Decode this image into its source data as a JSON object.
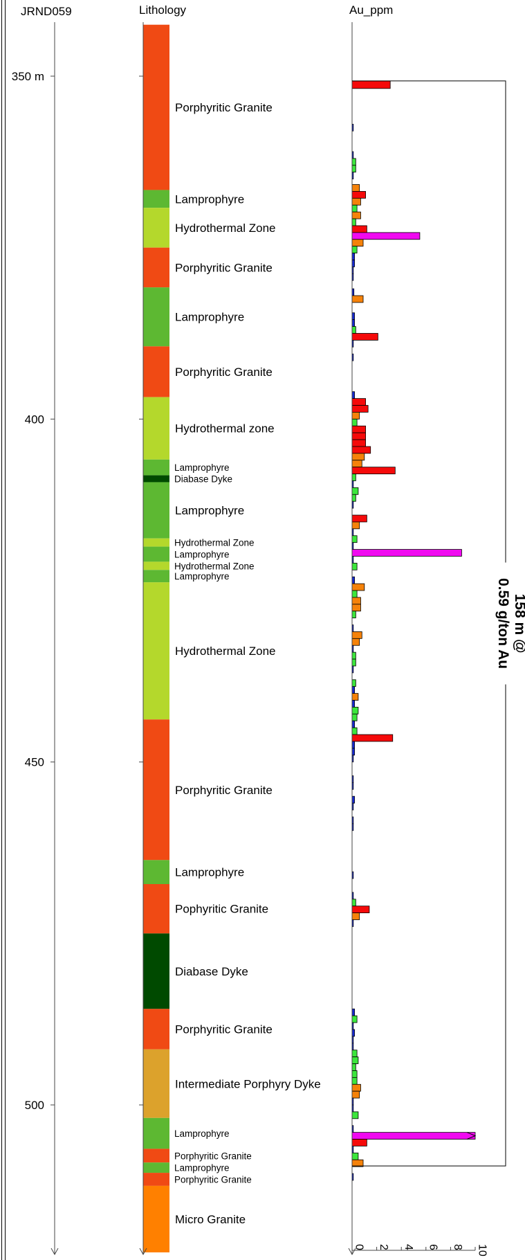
{
  "hole_id": "JRND059",
  "lithology_header": "Lithology",
  "assay_header": "Au_ppm",
  "colors": {
    "porphyritic_granite": "#F04A14",
    "lamprophyre": "#5DB832",
    "hydrothermal": "#B4D82C",
    "diabase": "#004A00",
    "intermediate": "#DCA22C",
    "micro_granite": "#FF8000",
    "au_lt_0_25": "#1428D2",
    "au_0_25_0_5": "#3CE63C",
    "au_0_5_1": "#F5820A",
    "au_1_5": "#F50A0A",
    "au_gt_5": "#F00AF0"
  },
  "chart_data": {
    "type": "bar",
    "orientation": "horizontal",
    "depth_axis": {
      "unit": "m",
      "range": [
        342.5,
        521.5
      ],
      "ticks": [
        {
          "depth": 350,
          "label": "350 m"
        },
        {
          "depth": 400,
          "label": "400"
        },
        {
          "depth": 450,
          "label": "450"
        },
        {
          "depth": 500,
          "label": "500"
        }
      ]
    },
    "au_axis": {
      "range": [
        0,
        10
      ],
      "ticks": [
        {
          "value": 0,
          "label": "0"
        },
        {
          "value": 2,
          "label": "2"
        },
        {
          "value": 4,
          "label": "4"
        },
        {
          "value": 6,
          "label": "6"
        },
        {
          "value": 8,
          "label": "8"
        },
        {
          "value": 10,
          "label": "10"
        }
      ]
    },
    "lithology": [
      {
        "from": 342.5,
        "to": 366.6,
        "name": "Porphyritic Granite",
        "key": "porphyritic_granite",
        "size": "large"
      },
      {
        "from": 366.6,
        "to": 369.2,
        "name": "Lamprophyre",
        "key": "lamprophyre",
        "size": "large"
      },
      {
        "from": 369.2,
        "to": 375.0,
        "name": "Hydrothermal Zone",
        "key": "hydrothermal",
        "size": "large"
      },
      {
        "from": 375.0,
        "to": 380.8,
        "name": "Porphyritic Granite",
        "key": "porphyritic_granite",
        "size": "large"
      },
      {
        "from": 380.8,
        "to": 389.4,
        "name": "Lamprophyre",
        "key": "lamprophyre",
        "size": "large"
      },
      {
        "from": 389.4,
        "to": 396.8,
        "name": "Porphyritic Granite",
        "key": "porphyritic_granite",
        "size": "large"
      },
      {
        "from": 396.8,
        "to": 405.9,
        "name": "Hydrothermal zone",
        "key": "hydrothermal",
        "size": "large"
      },
      {
        "from": 405.9,
        "to": 408.2,
        "name": "Lamprophyre",
        "key": "lamprophyre",
        "size": "small"
      },
      {
        "from": 408.2,
        "to": 409.2,
        "name": "Diabase Dyke",
        "key": "diabase",
        "size": "small"
      },
      {
        "from": 409.2,
        "to": 417.4,
        "name": "Lamprophyre",
        "key": "lamprophyre",
        "size": "large"
      },
      {
        "from": 417.4,
        "to": 418.6,
        "name": "Hydrothermal Zone",
        "key": "hydrothermal",
        "size": "small"
      },
      {
        "from": 418.6,
        "to": 420.8,
        "name": "Lamprophyre",
        "key": "lamprophyre",
        "size": "small"
      },
      {
        "from": 420.8,
        "to": 422.0,
        "name": "Hydrothermal Zone",
        "key": "hydrothermal",
        "size": "small"
      },
      {
        "from": 422.0,
        "to": 423.8,
        "name": "Lamprophyre",
        "key": "lamprophyre",
        "size": "small"
      },
      {
        "from": 423.8,
        "to": 443.8,
        "name": "Hydrothermal Zone",
        "key": "hydrothermal",
        "size": "large"
      },
      {
        "from": 443.8,
        "to": 464.3,
        "name": "Porphyritic Granite",
        "key": "porphyritic_granite",
        "size": "large"
      },
      {
        "from": 464.3,
        "to": 467.8,
        "name": "Lamprophyre",
        "key": "lamprophyre",
        "size": "large"
      },
      {
        "from": 467.8,
        "to": 475.0,
        "name": "Pophyritic Granite",
        "key": "porphyritic_granite",
        "size": "large"
      },
      {
        "from": 475.0,
        "to": 486.0,
        "name": "Diabase Dyke",
        "key": "diabase",
        "size": "large"
      },
      {
        "from": 486.0,
        "to": 491.9,
        "name": "Porphyritic Granite",
        "key": "porphyritic_granite",
        "size": "large"
      },
      {
        "from": 491.9,
        "to": 501.9,
        "name": "Intermediate Porphyry Dyke",
        "key": "intermediate",
        "size": "large"
      },
      {
        "from": 501.9,
        "to": 506.4,
        "name": "Lamprophyre",
        "key": "lamprophyre",
        "size": "small"
      },
      {
        "from": 506.4,
        "to": 508.4,
        "name": "Porphyritic Granite",
        "key": "porphyritic_granite",
        "size": "small"
      },
      {
        "from": 508.4,
        "to": 509.9,
        "name": "Lamprophyre",
        "key": "lamprophyre",
        "size": "small"
      },
      {
        "from": 509.9,
        "to": 511.8,
        "name": "Porphyritic Granite",
        "key": "porphyritic_granite",
        "size": "small"
      },
      {
        "from": 511.8,
        "to": 521.5,
        "name": "Micro Granite",
        "key": "micro_granite",
        "size": "large"
      }
    ],
    "au_ppm": [
      {
        "from": 350.7,
        "to": 351.8,
        "value": 3.1,
        "color": "au_1_5"
      },
      {
        "from": 357.0,
        "to": 358.0,
        "value": 0.1,
        "color": "au_lt_0_25"
      },
      {
        "from": 361.0,
        "to": 362.0,
        "value": 0.1,
        "color": "au_lt_0_25"
      },
      {
        "from": 362.0,
        "to": 363.0,
        "value": 0.3,
        "color": "au_0_25_0_5"
      },
      {
        "from": 363.0,
        "to": 364.0,
        "value": 0.3,
        "color": "au_0_25_0_5"
      },
      {
        "from": 364.0,
        "to": 365.0,
        "value": 0.1,
        "color": "au_lt_0_25"
      },
      {
        "from": 365.8,
        "to": 366.8,
        "value": 0.6,
        "color": "au_0_5_1"
      },
      {
        "from": 366.8,
        "to": 367.8,
        "value": 1.1,
        "color": "au_1_5"
      },
      {
        "from": 367.8,
        "to": 368.8,
        "value": 0.7,
        "color": "au_0_5_1"
      },
      {
        "from": 368.8,
        "to": 369.8,
        "value": 0.4,
        "color": "au_0_25_0_5"
      },
      {
        "from": 369.8,
        "to": 370.8,
        "value": 0.7,
        "color": "au_0_5_1"
      },
      {
        "from": 370.8,
        "to": 371.8,
        "value": 0.3,
        "color": "au_0_25_0_5"
      },
      {
        "from": 371.8,
        "to": 372.8,
        "value": 1.2,
        "color": "au_1_5"
      },
      {
        "from": 372.8,
        "to": 373.8,
        "value": 5.5,
        "color": "au_gt_5"
      },
      {
        "from": 373.8,
        "to": 374.8,
        "value": 0.9,
        "color": "au_0_5_1"
      },
      {
        "from": 374.8,
        "to": 375.8,
        "value": 0.4,
        "color": "au_0_25_0_5"
      },
      {
        "from": 375.8,
        "to": 376.8,
        "value": 0.2,
        "color": "au_lt_0_25"
      },
      {
        "from": 376.8,
        "to": 377.8,
        "value": 0.2,
        "color": "au_lt_0_25"
      },
      {
        "from": 377.8,
        "to": 378.8,
        "value": 0.1,
        "color": "au_lt_0_25"
      },
      {
        "from": 378.8,
        "to": 379.8,
        "value": 0.1,
        "color": "au_lt_0_25"
      },
      {
        "from": 381.0,
        "to": 382.0,
        "value": 0.15,
        "color": "au_lt_0_25"
      },
      {
        "from": 382.0,
        "to": 383.0,
        "value": 0.9,
        "color": "au_0_5_1"
      },
      {
        "from": 384.5,
        "to": 385.5,
        "value": 0.2,
        "color": "au_lt_0_25"
      },
      {
        "from": 385.5,
        "to": 386.5,
        "value": 0.2,
        "color": "au_lt_0_25"
      },
      {
        "from": 386.5,
        "to": 387.5,
        "value": 0.3,
        "color": "au_0_25_0_5"
      },
      {
        "from": 387.5,
        "to": 388.5,
        "value": 2.1,
        "color": "au_1_5"
      },
      {
        "from": 388.5,
        "to": 389.5,
        "value": 0.1,
        "color": "au_lt_0_25"
      },
      {
        "from": 390.5,
        "to": 391.5,
        "value": 0.1,
        "color": "au_lt_0_25"
      },
      {
        "from": 396.0,
        "to": 397.0,
        "value": 0.2,
        "color": "au_lt_0_25"
      },
      {
        "from": 397.0,
        "to": 398.0,
        "value": 1.1,
        "color": "au_1_5"
      },
      {
        "from": 398.0,
        "to": 399.0,
        "value": 1.3,
        "color": "au_1_5"
      },
      {
        "from": 399.0,
        "to": 400.0,
        "value": 0.6,
        "color": "au_0_5_1"
      },
      {
        "from": 400.0,
        "to": 401.0,
        "value": 0.4,
        "color": "au_0_25_0_5"
      },
      {
        "from": 401.0,
        "to": 402.0,
        "value": 1.1,
        "color": "au_1_5"
      },
      {
        "from": 402.0,
        "to": 403.0,
        "value": 1.1,
        "color": "au_1_5"
      },
      {
        "from": 403.0,
        "to": 404.0,
        "value": 1.1,
        "color": "au_1_5"
      },
      {
        "from": 404.0,
        "to": 405.0,
        "value": 1.5,
        "color": "au_1_5"
      },
      {
        "from": 405.0,
        "to": 406.0,
        "value": 1.0,
        "color": "au_0_5_1"
      },
      {
        "from": 406.0,
        "to": 407.0,
        "value": 0.8,
        "color": "au_0_5_1"
      },
      {
        "from": 407.0,
        "to": 408.0,
        "value": 3.5,
        "color": "au_1_5"
      },
      {
        "from": 408.0,
        "to": 409.0,
        "value": 0.3,
        "color": "au_0_25_0_5"
      },
      {
        "from": 409.0,
        "to": 410.0,
        "value": 0.1,
        "color": "au_lt_0_25"
      },
      {
        "from": 410.0,
        "to": 411.0,
        "value": 0.5,
        "color": "au_0_25_0_5"
      },
      {
        "from": 411.0,
        "to": 412.0,
        "value": 0.3,
        "color": "au_0_25_0_5"
      },
      {
        "from": 412.0,
        "to": 413.0,
        "value": 0.1,
        "color": "au_lt_0_25"
      },
      {
        "from": 414.0,
        "to": 415.0,
        "value": 1.2,
        "color": "au_1_5"
      },
      {
        "from": 415.0,
        "to": 416.0,
        "value": 0.6,
        "color": "au_0_5_1"
      },
      {
        "from": 416.0,
        "to": 417.0,
        "value": 0.1,
        "color": "au_lt_0_25"
      },
      {
        "from": 417.0,
        "to": 418.0,
        "value": 0.4,
        "color": "au_0_25_0_5"
      },
      {
        "from": 418.0,
        "to": 419.0,
        "value": 0.1,
        "color": "au_lt_0_25"
      },
      {
        "from": 419.0,
        "to": 420.0,
        "value": 8.9,
        "color": "au_gt_5"
      },
      {
        "from": 420.0,
        "to": 421.0,
        "value": 0.1,
        "color": "au_lt_0_25"
      },
      {
        "from": 421.0,
        "to": 422.0,
        "value": 0.4,
        "color": "au_0_25_0_5"
      },
      {
        "from": 423.0,
        "to": 424.0,
        "value": 0.2,
        "color": "au_lt_0_25"
      },
      {
        "from": 424.0,
        "to": 425.0,
        "value": 1.0,
        "color": "au_0_5_1"
      },
      {
        "from": 425.0,
        "to": 426.0,
        "value": 0.4,
        "color": "au_0_25_0_5"
      },
      {
        "from": 426.0,
        "to": 427.0,
        "value": 0.7,
        "color": "au_0_5_1"
      },
      {
        "from": 427.0,
        "to": 428.0,
        "value": 0.7,
        "color": "au_0_5_1"
      },
      {
        "from": 428.0,
        "to": 429.0,
        "value": 0.3,
        "color": "au_0_25_0_5"
      },
      {
        "from": 430.0,
        "to": 431.0,
        "value": 0.1,
        "color": "au_lt_0_25"
      },
      {
        "from": 431.0,
        "to": 432.0,
        "value": 0.8,
        "color": "au_0_5_1"
      },
      {
        "from": 432.0,
        "to": 433.0,
        "value": 0.6,
        "color": "au_0_5_1"
      },
      {
        "from": 433.0,
        "to": 434.0,
        "value": 0.1,
        "color": "au_lt_0_25"
      },
      {
        "from": 434.0,
        "to": 435.0,
        "value": 0.3,
        "color": "au_0_25_0_5"
      },
      {
        "from": 435.0,
        "to": 436.0,
        "value": 0.3,
        "color": "au_0_25_0_5"
      },
      {
        "from": 436.0,
        "to": 437.0,
        "value": 0.1,
        "color": "au_lt_0_25"
      },
      {
        "from": 438.0,
        "to": 439.0,
        "value": 0.3,
        "color": "au_0_25_0_5"
      },
      {
        "from": 439.0,
        "to": 440.0,
        "value": 0.2,
        "color": "au_lt_0_25"
      },
      {
        "from": 440.0,
        "to": 441.0,
        "value": 0.5,
        "color": "au_0_5_1"
      },
      {
        "from": 441.0,
        "to": 442.0,
        "value": 0.2,
        "color": "au_lt_0_25"
      },
      {
        "from": 442.0,
        "to": 443.0,
        "value": 0.5,
        "color": "au_0_25_0_5"
      },
      {
        "from": 443.0,
        "to": 444.0,
        "value": 0.4,
        "color": "au_0_25_0_5"
      },
      {
        "from": 444.0,
        "to": 445.0,
        "value": 0.2,
        "color": "au_lt_0_25"
      },
      {
        "from": 445.0,
        "to": 446.0,
        "value": 0.4,
        "color": "au_0_25_0_5"
      },
      {
        "from": 446.0,
        "to": 447.0,
        "value": 3.3,
        "color": "au_1_5"
      },
      {
        "from": 447.0,
        "to": 448.0,
        "value": 0.2,
        "color": "au_lt_0_25"
      },
      {
        "from": 448.0,
        "to": 449.0,
        "value": 0.2,
        "color": "au_lt_0_25"
      },
      {
        "from": 449.0,
        "to": 450.0,
        "value": 0.1,
        "color": "au_lt_0_25"
      },
      {
        "from": 452.0,
        "to": 453.0,
        "value": 0.1,
        "color": "au_lt_0_25"
      },
      {
        "from": 453.0,
        "to": 454.0,
        "value": 0.1,
        "color": "au_lt_0_25"
      },
      {
        "from": 455.0,
        "to": 456.0,
        "value": 0.2,
        "color": "au_lt_0_25"
      },
      {
        "from": 456.0,
        "to": 457.0,
        "value": 0.1,
        "color": "au_lt_0_25"
      },
      {
        "from": 458.0,
        "to": 459.0,
        "value": 0.1,
        "color": "au_lt_0_25"
      },
      {
        "from": 459.0,
        "to": 460.0,
        "value": 0.1,
        "color": "au_lt_0_25"
      },
      {
        "from": 466.0,
        "to": 467.0,
        "value": 0.1,
        "color": "au_lt_0_25"
      },
      {
        "from": 469.0,
        "to": 470.0,
        "value": 0.1,
        "color": "au_lt_0_25"
      },
      {
        "from": 470.0,
        "to": 471.0,
        "value": 0.3,
        "color": "au_0_25_0_5"
      },
      {
        "from": 471.0,
        "to": 472.0,
        "value": 1.4,
        "color": "au_1_5"
      },
      {
        "from": 472.0,
        "to": 473.0,
        "value": 0.6,
        "color": "au_0_5_1"
      },
      {
        "from": 473.0,
        "to": 474.0,
        "value": 0.1,
        "color": "au_lt_0_25"
      },
      {
        "from": 486.0,
        "to": 487.0,
        "value": 0.2,
        "color": "au_lt_0_25"
      },
      {
        "from": 487.0,
        "to": 488.0,
        "value": 0.4,
        "color": "au_0_25_0_5"
      },
      {
        "from": 488.0,
        "to": 489.0,
        "value": 0.1,
        "color": "au_lt_0_25"
      },
      {
        "from": 489.0,
        "to": 490.0,
        "value": 0.2,
        "color": "au_lt_0_25"
      },
      {
        "from": 490.0,
        "to": 491.0,
        "value": 0.1,
        "color": "au_lt_0_25"
      },
      {
        "from": 491.0,
        "to": 492.0,
        "value": 0.1,
        "color": "au_lt_0_25"
      },
      {
        "from": 492.0,
        "to": 493.0,
        "value": 0.4,
        "color": "au_0_25_0_5"
      },
      {
        "from": 493.0,
        "to": 494.0,
        "value": 0.5,
        "color": "au_0_25_0_5"
      },
      {
        "from": 494.0,
        "to": 495.0,
        "value": 0.3,
        "color": "au_0_25_0_5"
      },
      {
        "from": 495.0,
        "to": 496.0,
        "value": 0.4,
        "color": "au_0_25_0_5"
      },
      {
        "from": 496.0,
        "to": 497.0,
        "value": 0.4,
        "color": "au_0_25_0_5"
      },
      {
        "from": 497.0,
        "to": 498.0,
        "value": 0.7,
        "color": "au_0_5_1"
      },
      {
        "from": 498.0,
        "to": 499.0,
        "value": 0.6,
        "color": "au_0_5_1"
      },
      {
        "from": 499.0,
        "to": 500.0,
        "value": 0.1,
        "color": "au_lt_0_25"
      },
      {
        "from": 500.0,
        "to": 501.0,
        "value": 0.1,
        "color": "au_lt_0_25"
      },
      {
        "from": 501.0,
        "to": 502.0,
        "value": 0.5,
        "color": "au_0_25_0_5"
      },
      {
        "from": 503.0,
        "to": 504.0,
        "value": 0.1,
        "color": "au_lt_0_25"
      },
      {
        "from": 504.0,
        "to": 505.0,
        "value": 10.0,
        "color": "au_gt_5"
      },
      {
        "from": 505.0,
        "to": 506.0,
        "value": 1.2,
        "color": "au_1_5"
      },
      {
        "from": 506.0,
        "to": 507.0,
        "value": 0.1,
        "color": "au_lt_0_25"
      },
      {
        "from": 507.0,
        "to": 508.0,
        "value": 0.5,
        "color": "au_0_25_0_5"
      },
      {
        "from": 508.0,
        "to": 509.0,
        "value": 0.9,
        "color": "au_0_5_1"
      },
      {
        "from": 510.0,
        "to": 511.0,
        "value": 0.1,
        "color": "au_lt_0_25"
      }
    ],
    "intercept": {
      "from": 350.7,
      "to": 508.9,
      "line1": "158 m @",
      "line2": "0.59 g/ton Au"
    }
  }
}
